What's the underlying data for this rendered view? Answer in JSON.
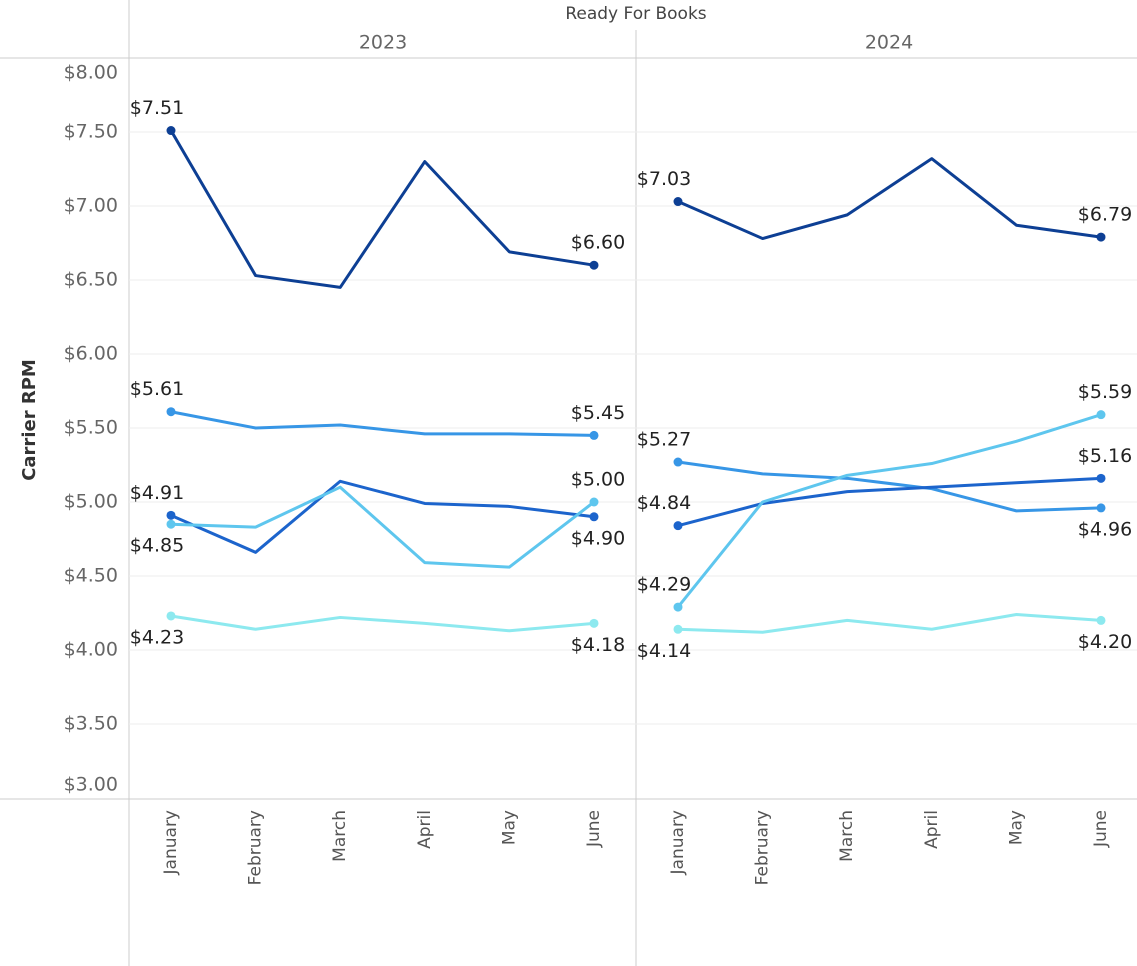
{
  "chart_data": {
    "type": "line",
    "title": "Ready For Books",
    "y_label": "Carrier RPM",
    "ylim": [
      3,
      8
    ],
    "yticks": [
      {
        "value": 3,
        "label": "$3.00"
      },
      {
        "value": 3.5,
        "label": "$3.50"
      },
      {
        "value": 4,
        "label": "$4.00"
      },
      {
        "value": 4.5,
        "label": "$4.50"
      },
      {
        "value": 5,
        "label": "$5.00"
      },
      {
        "value": 5.5,
        "label": "$5.50"
      },
      {
        "value": 6,
        "label": "$6.00"
      },
      {
        "value": 6.5,
        "label": "$6.50"
      },
      {
        "value": 7,
        "label": "$7.00"
      },
      {
        "value": 7.5,
        "label": "$7.50"
      },
      {
        "value": 8,
        "label": "$8.00"
      }
    ],
    "grid": true,
    "categories": [
      "January",
      "February",
      "March",
      "April",
      "May",
      "June"
    ],
    "panels": [
      {
        "title": "2023",
        "series": [
          {
            "color": "#0d3f94",
            "values": [
              7.51,
              6.53,
              6.45,
              7.3,
              6.69,
              6.6
            ],
            "value_labels": [
              "$7.51",
              null,
              null,
              null,
              null,
              "$6.60"
            ]
          },
          {
            "color": "#3796e6",
            "values": [
              5.61,
              5.5,
              5.52,
              5.46,
              5.46,
              5.45
            ],
            "value_labels": [
              "$5.61",
              null,
              null,
              null,
              null,
              "$5.45"
            ]
          },
          {
            "color": "#1c64cc",
            "values": [
              4.91,
              4.66,
              5.14,
              4.99,
              4.97,
              4.9
            ],
            "value_labels": [
              "$4.91",
              null,
              null,
              null,
              null,
              "$4.90"
            ]
          },
          {
            "color": "#5ec6ee",
            "values": [
              4.85,
              4.83,
              5.1,
              4.59,
              4.56,
              5.0
            ],
            "value_labels": [
              "$4.85",
              null,
              null,
              null,
              null,
              "$5.00"
            ]
          },
          {
            "color": "#8de9ef",
            "values": [
              4.23,
              4.14,
              4.22,
              4.18,
              4.13,
              4.18
            ],
            "value_labels": [
              "$4.23",
              null,
              null,
              null,
              null,
              "$4.18"
            ]
          }
        ]
      },
      {
        "title": "2024",
        "series": [
          {
            "color": "#0d3f94",
            "values": [
              7.03,
              6.78,
              6.94,
              7.32,
              6.87,
              6.79
            ],
            "value_labels": [
              "$7.03",
              null,
              null,
              null,
              null,
              "$6.79"
            ]
          },
          {
            "color": "#3796e6",
            "values": [
              5.27,
              5.19,
              5.16,
              5.09,
              4.94,
              4.96
            ],
            "value_labels": [
              "$5.27",
              null,
              null,
              null,
              null,
              "$4.96"
            ]
          },
          {
            "color": "#1c64cc",
            "values": [
              4.84,
              4.99,
              5.07,
              5.1,
              5.13,
              5.16
            ],
            "value_labels": [
              "$4.84",
              null,
              null,
              null,
              null,
              "$5.16"
            ]
          },
          {
            "color": "#5ec6ee",
            "values": [
              4.29,
              5.0,
              5.18,
              5.26,
              5.41,
              5.59
            ],
            "value_labels": [
              "$4.29",
              null,
              null,
              null,
              null,
              "$5.59"
            ]
          },
          {
            "color": "#8de9ef",
            "values": [
              4.14,
              4.12,
              4.2,
              4.14,
              4.24,
              4.2
            ],
            "value_labels": [
              "$4.14",
              null,
              null,
              null,
              null,
              "$4.20"
            ]
          }
        ]
      }
    ]
  }
}
